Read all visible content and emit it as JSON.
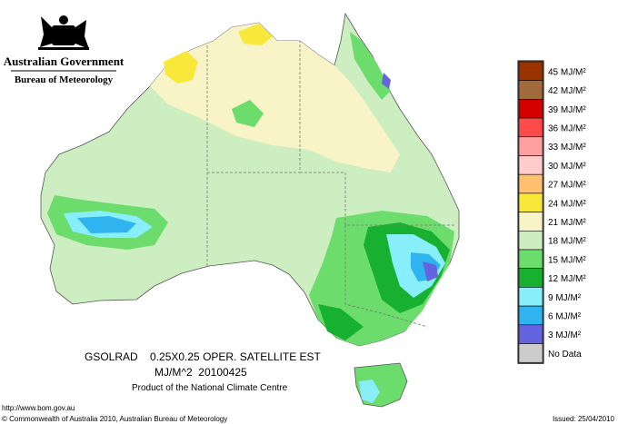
{
  "header": {
    "government": "Australian Government",
    "bureau": "Bureau of Meteorology"
  },
  "map": {
    "title": "GSOLRAD    0.25X0.25 OPER. SATELLITE EST",
    "subtitle": "MJ/M^2  20100425",
    "credit": "Product of the National Climate Centre"
  },
  "legend": {
    "items": [
      {
        "label": "45 MJ/M²",
        "color": "#993300"
      },
      {
        "label": "42 MJ/M²",
        "color": "#a06a3a"
      },
      {
        "label": "39 MJ/M²",
        "color": "#d40000"
      },
      {
        "label": "36 MJ/M²",
        "color": "#ff4a4a"
      },
      {
        "label": "33 MJ/M²",
        "color": "#ffa0a0"
      },
      {
        "label": "30 MJ/M²",
        "color": "#ffcccc"
      },
      {
        "label": "27 MJ/M²",
        "color": "#ffc070"
      },
      {
        "label": "24 MJ/M²",
        "color": "#f8e83a"
      },
      {
        "label": "21 MJ/M²",
        "color": "#f8f4c8"
      },
      {
        "label": "18 MJ/M²",
        "color": "#cdeec0"
      },
      {
        "label": "15 MJ/M²",
        "color": "#6cdc6c"
      },
      {
        "label": "12 MJ/M²",
        "color": "#18b030"
      },
      {
        "label": "9 MJ/M²",
        "color": "#88eefa"
      },
      {
        "label": "6 MJ/M²",
        "color": "#30b4f0"
      },
      {
        "label": "3 MJ/M²",
        "color": "#6464e0"
      },
      {
        "label": "No Data",
        "color": "#cccccc"
      }
    ]
  },
  "footer": {
    "url": "http://www.bom.gov.au",
    "copyright": "© Commonwealth of Australia 2010, Australian Bureau of Meteorology",
    "issued": "Issued: 25/04/2010"
  }
}
